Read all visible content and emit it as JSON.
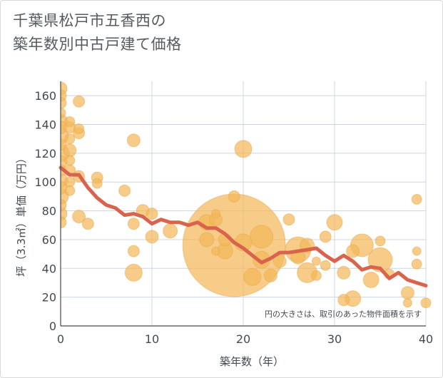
{
  "title_lines": [
    "千葉県松戸市五香西の",
    "築年数別中古戸建て価格"
  ],
  "colors": {
    "bubble_fill": "#f3b95a",
    "bubble_stroke": "#eaa64a",
    "line": "#d9644e",
    "grid": "#ccd5e3",
    "axis": "#444a52"
  },
  "chart_data": {
    "type": "scatter",
    "title": "千葉県松戸市五香西の築年数別中古戸建て価格",
    "xlabel": "築年数（年）",
    "ylabel": "坪（3.3㎡）単価（万円）",
    "xlim": [
      0,
      40
    ],
    "ylim": [
      0,
      170
    ],
    "xticks": [
      0,
      10,
      20,
      30,
      40
    ],
    "yticks": [
      0,
      20,
      40,
      60,
      80,
      100,
      120,
      140,
      160
    ],
    "grid": true,
    "annotation": "円の大きさは、取引のあった物件面積を示す",
    "bubbles": [
      {
        "x": 0,
        "y": 165,
        "size": 9
      },
      {
        "x": 0,
        "y": 160,
        "size": 8
      },
      {
        "x": 0,
        "y": 155,
        "size": 8
      },
      {
        "x": 0,
        "y": 148,
        "size": 7
      },
      {
        "x": 0,
        "y": 142,
        "size": 10
      },
      {
        "x": 0,
        "y": 138,
        "size": 9
      },
      {
        "x": 0,
        "y": 132,
        "size": 11
      },
      {
        "x": 0,
        "y": 126,
        "size": 8
      },
      {
        "x": 0,
        "y": 120,
        "size": 12
      },
      {
        "x": 0,
        "y": 114,
        "size": 9
      },
      {
        "x": 0,
        "y": 108,
        "size": 8
      },
      {
        "x": 0,
        "y": 101,
        "size": 10
      },
      {
        "x": 0,
        "y": 96,
        "size": 9
      },
      {
        "x": 0,
        "y": 90,
        "size": 11
      },
      {
        "x": 0,
        "y": 84,
        "size": 8
      },
      {
        "x": 0,
        "y": 78,
        "size": 9
      },
      {
        "x": 0,
        "y": 72,
        "size": 8
      },
      {
        "x": 1,
        "y": 142,
        "size": 7
      },
      {
        "x": 1,
        "y": 138,
        "size": 8
      },
      {
        "x": 1,
        "y": 130,
        "size": 7
      },
      {
        "x": 1,
        "y": 122,
        "size": 9
      },
      {
        "x": 1,
        "y": 115,
        "size": 7
      },
      {
        "x": 1,
        "y": 108,
        "size": 8
      },
      {
        "x": 1,
        "y": 100,
        "size": 7
      },
      {
        "x": 1,
        "y": 94,
        "size": 7
      },
      {
        "x": 2,
        "y": 156,
        "size": 8
      },
      {
        "x": 2,
        "y": 137,
        "size": 7
      },
      {
        "x": 2,
        "y": 134,
        "size": 8
      },
      {
        "x": 2,
        "y": 104,
        "size": 8
      },
      {
        "x": 2,
        "y": 76,
        "size": 9
      },
      {
        "x": 3,
        "y": 71,
        "size": 8
      },
      {
        "x": 4,
        "y": 103,
        "size": 8
      },
      {
        "x": 4,
        "y": 99,
        "size": 7
      },
      {
        "x": 7,
        "y": 94,
        "size": 8
      },
      {
        "x": 8,
        "y": 129,
        "size": 9
      },
      {
        "x": 8,
        "y": 71,
        "size": 8
      },
      {
        "x": 8,
        "y": 52,
        "size": 8
      },
      {
        "x": 8,
        "y": 37,
        "size": 12
      },
      {
        "x": 9,
        "y": 80,
        "size": 9
      },
      {
        "x": 10,
        "y": 78,
        "size": 8
      },
      {
        "x": 10,
        "y": 62,
        "size": 9
      },
      {
        "x": 12,
        "y": 66,
        "size": 10
      },
      {
        "x": 16,
        "y": 72,
        "size": 11
      },
      {
        "x": 16,
        "y": 60,
        "size": 10
      },
      {
        "x": 17,
        "y": 78,
        "size": 6
      },
      {
        "x": 17,
        "y": 74,
        "size": 9
      },
      {
        "x": 17,
        "y": 52,
        "size": 6
      },
      {
        "x": 18,
        "y": 60,
        "size": 9
      },
      {
        "x": 18,
        "y": 52,
        "size": 11
      },
      {
        "x": 19,
        "y": 56,
        "size": 72
      },
      {
        "x": 19,
        "y": 90,
        "size": 8
      },
      {
        "x": 20,
        "y": 123,
        "size": 12
      },
      {
        "x": 20,
        "y": 58,
        "size": 12
      },
      {
        "x": 21,
        "y": 34,
        "size": 12
      },
      {
        "x": 22,
        "y": 62,
        "size": 16
      },
      {
        "x": 22,
        "y": 46,
        "size": 12
      },
      {
        "x": 23,
        "y": 35,
        "size": 9
      },
      {
        "x": 24,
        "y": 45,
        "size": 9
      },
      {
        "x": 25,
        "y": 74,
        "size": 8
      },
      {
        "x": 26,
        "y": 53,
        "size": 18
      },
      {
        "x": 26,
        "y": 48,
        "size": 10
      },
      {
        "x": 27,
        "y": 56,
        "size": 10
      },
      {
        "x": 27,
        "y": 37,
        "size": 14
      },
      {
        "x": 28,
        "y": 35,
        "size": 7
      },
      {
        "x": 28,
        "y": 45,
        "size": 6
      },
      {
        "x": 29,
        "y": 62,
        "size": 8
      },
      {
        "x": 29,
        "y": 42,
        "size": 7
      },
      {
        "x": 30,
        "y": 72,
        "size": 11
      },
      {
        "x": 31,
        "y": 37,
        "size": 9
      },
      {
        "x": 31,
        "y": 18,
        "size": 8
      },
      {
        "x": 32,
        "y": 52,
        "size": 9
      },
      {
        "x": 32,
        "y": 19,
        "size": 11
      },
      {
        "x": 33,
        "y": 56,
        "size": 16
      },
      {
        "x": 34,
        "y": 32,
        "size": 11
      },
      {
        "x": 35,
        "y": 59,
        "size": 7
      },
      {
        "x": 35,
        "y": 46,
        "size": 17
      },
      {
        "x": 36,
        "y": 36,
        "size": 7
      },
      {
        "x": 38,
        "y": 23,
        "size": 9
      },
      {
        "x": 38,
        "y": 16,
        "size": 6
      },
      {
        "x": 39,
        "y": 88,
        "size": 7
      },
      {
        "x": 39,
        "y": 52,
        "size": 6
      },
      {
        "x": 39,
        "y": 43,
        "size": 7
      },
      {
        "x": 40,
        "y": 16,
        "size": 7
      }
    ],
    "series": [
      {
        "type": "line",
        "x": [
          0,
          1,
          2,
          3,
          4,
          5,
          6,
          7,
          8,
          9,
          10,
          11,
          12,
          13,
          14,
          15,
          16,
          17,
          18,
          19,
          20,
          21,
          22,
          23,
          24,
          25,
          26,
          27,
          28,
          29,
          30,
          31,
          32,
          33,
          34,
          35,
          36,
          37,
          38,
          39,
          40
        ],
        "values": [
          110,
          105,
          105,
          96,
          89,
          84,
          82,
          77,
          78,
          76,
          71,
          74,
          72,
          72,
          70,
          72,
          68,
          68,
          64,
          58,
          54,
          49,
          44,
          47,
          51,
          51,
          52,
          53,
          54,
          49,
          45,
          49,
          45,
          39,
          41,
          40,
          33,
          37,
          32,
          30,
          28
        ]
      }
    ]
  }
}
